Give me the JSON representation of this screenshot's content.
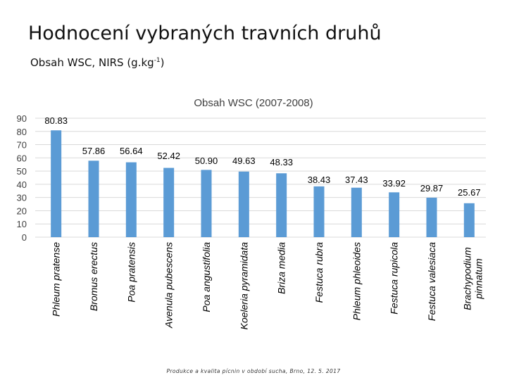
{
  "slide": {
    "title": "Hodnocení vybraných travních druhů",
    "subtitle": "Obsah WSC, NIRS (g.kg-1)",
    "footer": "Produkce a kvalita pícnin v období sucha, Brno, 12. 5. 2017"
  },
  "colors": {
    "bar": "#5B9BD5",
    "grid": "#D9D9D9",
    "text": "#404040"
  },
  "chart_data": {
    "type": "bar",
    "title": "Obsah WSC (2007-2008)",
    "xlabel": "",
    "ylabel": "",
    "ylim": [
      0,
      90
    ],
    "yticks": [
      0,
      10,
      20,
      30,
      40,
      50,
      60,
      70,
      80,
      90
    ],
    "grid": true,
    "legend": "none",
    "categories": [
      "Phleum pratense",
      "Bromus erectus",
      "Poa pratensis",
      "Avenula pubescens",
      "Poa angustifolia",
      "Koeleria pyramidata",
      "Briza media",
      "Festuca rubra",
      "Phleum phleoides",
      "Festuca rupicola",
      "Festuca valesiaca",
      "Brachypodium pinnatum"
    ],
    "values": [
      80.83,
      57.86,
      56.64,
      52.42,
      50.9,
      49.63,
      48.33,
      38.43,
      37.43,
      33.92,
      29.87,
      25.67
    ],
    "value_labels": [
      "80.83",
      "57.86",
      "56.64",
      "52.42",
      "50.90",
      "49.63",
      "48.33",
      "38.43",
      "37.43",
      "33.92",
      "29.87",
      "25.67"
    ]
  }
}
